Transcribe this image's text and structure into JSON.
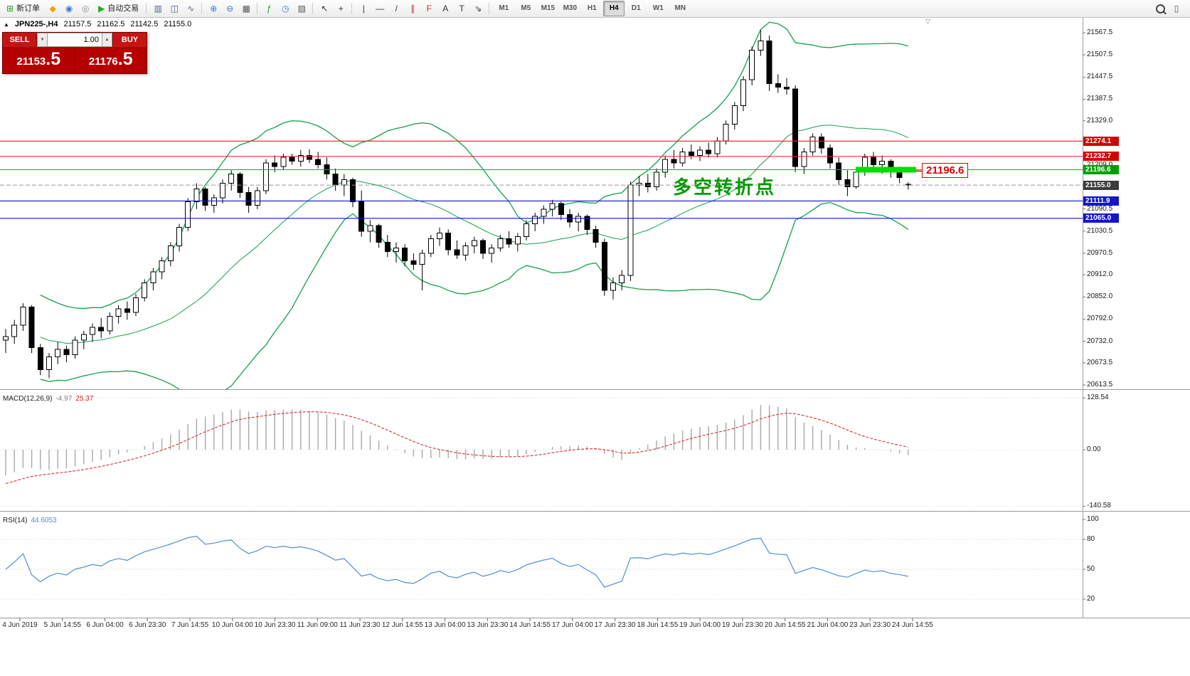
{
  "toolbar": {
    "items": [
      {
        "kind": "labeled",
        "name": "new-order-button",
        "glyph": "⊞",
        "glyph_color": "#1f9d1f",
        "label": "新订单"
      },
      {
        "kind": "glyph",
        "name": "mql-market-icon",
        "glyph": "◆",
        "color": "#eba312"
      },
      {
        "kind": "glyph",
        "name": "community-icon",
        "glyph": "◉",
        "color": "#3a79c9"
      },
      {
        "kind": "glyph",
        "name": "signals-icon",
        "glyph": "◎",
        "color": "#8a8a8a"
      },
      {
        "kind": "labeled",
        "name": "autotrading-button",
        "glyph": "▶",
        "glyph_color": "#1faa1f",
        "label": "自动交易"
      },
      {
        "kind": "sep"
      },
      {
        "kind": "glyph",
        "name": "bar-chart-icon",
        "glyph": "▥",
        "color": "#50618c"
      },
      {
        "kind": "glyph",
        "name": "candlestick-chart-icon",
        "glyph": "◫",
        "color": "#50618c"
      },
      {
        "kind": "glyph",
        "name": "line-chart-icon",
        "glyph": "∿",
        "color": "#50618c"
      },
      {
        "kind": "sep"
      },
      {
        "kind": "glyph",
        "name": "zoom-in-icon",
        "glyph": "⊕",
        "color": "#3a79c9"
      },
      {
        "kind": "glyph",
        "name": "zoom-out-icon",
        "glyph": "⊖",
        "color": "#3a79c9"
      },
      {
        "kind": "glyph",
        "name": "tile-windows-icon",
        "glyph": "▦",
        "color": "#555555"
      },
      {
        "kind": "sep"
      },
      {
        "kind": "glyph",
        "name": "indicators-icon",
        "glyph": "ƒ",
        "color": "#1f9d1f"
      },
      {
        "kind": "glyph",
        "name": "periods-icon",
        "glyph": "◷",
        "color": "#3a79c9"
      },
      {
        "kind": "glyph",
        "name": "templates-icon",
        "glyph": "▨",
        "color": "#555555"
      },
      {
        "kind": "sep"
      },
      {
        "kind": "glyph",
        "name": "cursor-icon",
        "glyph": "↖",
        "color": "#333333"
      },
      {
        "kind": "glyph",
        "name": "crosshair-icon",
        "glyph": "+",
        "color": "#333333"
      },
      {
        "kind": "sep"
      },
      {
        "kind": "glyph",
        "name": "vertical-line-icon",
        "glyph": "|",
        "color": "#333333"
      },
      {
        "kind": "glyph",
        "name": "horizontal-line-icon",
        "glyph": "—",
        "color": "#333333"
      },
      {
        "kind": "glyph",
        "name": "trendline-icon",
        "glyph": "/",
        "color": "#333333"
      },
      {
        "kind": "glyph",
        "name": "equidistant-channel-icon",
        "glyph": "∥",
        "color": "#c03030"
      },
      {
        "kind": "glyph",
        "name": "fibonacci-icon",
        "glyph": "F",
        "color": "#c03030"
      },
      {
        "kind": "glyph",
        "name": "text-icon",
        "glyph": "A",
        "color": "#333333"
      },
      {
        "kind": "glyph",
        "name": "text-label-icon",
        "glyph": "T",
        "color": "#333333"
      },
      {
        "kind": "glyph",
        "name": "arrows-icon",
        "glyph": "⇘",
        "color": "#333333"
      },
      {
        "kind": "sep"
      }
    ],
    "timeframes": {
      "options": [
        "M1",
        "M5",
        "M15",
        "M30",
        "H1",
        "H4",
        "D1",
        "W1",
        "MN"
      ],
      "active": "H4"
    },
    "right_items": [
      {
        "kind": "mag",
        "name": "search-icon"
      },
      {
        "kind": "glyph",
        "name": "new-window-icon",
        "glyph": "▯",
        "color": "#555555"
      }
    ]
  },
  "symbol_info": {
    "marker": "▲",
    "name": "JPN225-,H4",
    "open": "21157.5",
    "high": "21162.5",
    "low": "21142.5",
    "close": "21155.0"
  },
  "trade_panel": {
    "sell_label": "SELL",
    "buy_label": "BUY",
    "volume": "1.00",
    "stepper_down_icon": "▼",
    "stepper_up_icon": "▲",
    "sell_price_main": "21153",
    "sell_price_frac": ".5",
    "buy_price_main": "21176",
    "buy_price_frac": ".5"
  },
  "annotation": {
    "text": "多空转折点",
    "color": "#009900"
  },
  "price_tag": {
    "text": "21196.6",
    "color": "#e00000"
  },
  "misc": {
    "scroll_marker": "▽"
  },
  "chart_data": {
    "type": "candlestick",
    "symbol": "JPN225-",
    "timeframe": "H4",
    "ohlc_current": {
      "open": 21157.5,
      "high": 21162.5,
      "low": 21142.5,
      "close": 21155.0
    },
    "price_axis_range": {
      "min": 20602,
      "max": 21610
    },
    "y_axis_labels": [
      "21567.5",
      "21507.5",
      "21447.5",
      "21387.5",
      "21329.0",
      "21209.0",
      "21090.5",
      "21030.5",
      "20970.5",
      "20912.0",
      "20852.0",
      "20792.0",
      "20732.0",
      "20673.5",
      "20613.5"
    ],
    "x_axis_labels": [
      "4 Jun 2019",
      "5 Jun 14:55",
      "6 Jun 04:00",
      "6 Jun 23:30",
      "7 Jun 14:55",
      "10 Jun 04:00",
      "10 Jun 23:30",
      "11 Jun 09:00",
      "11 Jun 23:30",
      "12 Jun 14:55",
      "13 Jun 04:00",
      "13 Jun 23:30",
      "14 Jun 14:55",
      "17 Jun 04:00",
      "17 Jun 23:30",
      "18 Jun 14:55",
      "19 Jun 04:00",
      "19 Jun 23:30",
      "20 Jun 14:55",
      "21 Jun 04:00",
      "23 Jun 23:30",
      "24 Jun 14:55"
    ],
    "colors": {
      "bull": "#ffffff",
      "bear": "#000000",
      "wick": "#000000",
      "bollinger": "#12a14b"
    },
    "bollinger": {
      "period": 20,
      "deviation": 2
    },
    "hlines": [
      {
        "price": 21274.1,
        "label": "21274.1",
        "line_color": "#ff1a1a",
        "badge_color": "#d40000"
      },
      {
        "price": 21232.7,
        "label": "21232.7",
        "line_color": "#ff1a1a",
        "badge_color": "#d40000"
      },
      {
        "price": 21196.6,
        "label": "21196.6",
        "line_color": "#00bb00",
        "badge_color": "#00a000"
      },
      {
        "price": 21111.9,
        "label": "21111.9",
        "line_color": "#1515dd",
        "badge_color": "#1515cc"
      },
      {
        "price": 21065.0,
        "label": "21065.0",
        "line_color": "#1515dd",
        "badge_color": "#1515cc"
      }
    ],
    "current_price": {
      "price": 21155.0,
      "label": "21155.0",
      "badge_color": "#3c3c3c",
      "line_color": "#999999"
    },
    "highlight": {
      "price": 21196.6,
      "color": "#00df00"
    },
    "candles": [
      [
        20735,
        20765,
        20700,
        20745
      ],
      [
        20745,
        20790,
        20725,
        20775
      ],
      [
        20775,
        20835,
        20760,
        20825
      ],
      [
        20825,
        20830,
        20700,
        20715
      ],
      [
        20715,
        20725,
        20640,
        20655
      ],
      [
        20655,
        20700,
        20632,
        20690
      ],
      [
        20690,
        20730,
        20670,
        20710
      ],
      [
        20710,
        20720,
        20675,
        20695
      ],
      [
        20695,
        20745,
        20685,
        20735
      ],
      [
        20735,
        20760,
        20710,
        20750
      ],
      [
        20750,
        20780,
        20730,
        20770
      ],
      [
        20770,
        20795,
        20740,
        20760
      ],
      [
        20760,
        20810,
        20750,
        20800
      ],
      [
        20800,
        20830,
        20780,
        20820
      ],
      [
        20820,
        20840,
        20790,
        20810
      ],
      [
        20810,
        20860,
        20800,
        20850
      ],
      [
        20850,
        20900,
        20840,
        20890
      ],
      [
        20890,
        20930,
        20870,
        20920
      ],
      [
        20920,
        20960,
        20900,
        20950
      ],
      [
        20950,
        21000,
        20935,
        20990
      ],
      [
        20990,
        21050,
        20975,
        21040
      ],
      [
        21040,
        21120,
        21030,
        21110
      ],
      [
        21110,
        21160,
        21090,
        21145
      ],
      [
        21145,
        21150,
        21085,
        21100
      ],
      [
        21100,
        21130,
        21080,
        21120
      ],
      [
        21120,
        21170,
        21105,
        21160
      ],
      [
        21160,
        21195,
        21140,
        21185
      ],
      [
        21185,
        21190,
        21120,
        21135
      ],
      [
        21135,
        21150,
        21080,
        21100
      ],
      [
        21100,
        21150,
        21090,
        21140
      ],
      [
        21140,
        21225,
        21130,
        21215
      ],
      [
        21215,
        21235,
        21190,
        21205
      ],
      [
        21205,
        21240,
        21195,
        21230
      ],
      [
        21230,
        21240,
        21210,
        21220
      ],
      [
        21220,
        21250,
        21205,
        21235
      ],
      [
        21235,
        21252,
        21215,
        21225
      ],
      [
        21225,
        21245,
        21200,
        21210
      ],
      [
        21210,
        21230,
        21170,
        21185
      ],
      [
        21185,
        21200,
        21140,
        21155
      ],
      [
        21155,
        21185,
        21125,
        21170
      ],
      [
        21170,
        21175,
        21095,
        21110
      ],
      [
        21110,
        21140,
        21015,
        21030
      ],
      [
        21030,
        21060,
        21000,
        21045
      ],
      [
        21045,
        21050,
        20985,
        21000
      ],
      [
        21000,
        21020,
        20960,
        20975
      ],
      [
        20975,
        21000,
        20945,
        20985
      ],
      [
        20985,
        20995,
        20935,
        20950
      ],
      [
        20950,
        20970,
        20925,
        20940
      ],
      [
        20940,
        20980,
        20870,
        20970
      ],
      [
        20970,
        21020,
        20960,
        21010
      ],
      [
        21010,
        21040,
        20990,
        21025
      ],
      [
        21025,
        21035,
        20965,
        20980
      ],
      [
        20980,
        21005,
        20955,
        20965
      ],
      [
        20965,
        21000,
        20950,
        20990
      ],
      [
        20990,
        21015,
        20970,
        21005
      ],
      [
        21005,
        21010,
        20955,
        20970
      ],
      [
        20970,
        20995,
        20945,
        20985
      ],
      [
        20985,
        21020,
        20975,
        21010
      ],
      [
        21010,
        21030,
        20985,
        20995
      ],
      [
        20995,
        21025,
        20975,
        21015
      ],
      [
        21015,
        21060,
        21005,
        21050
      ],
      [
        21050,
        21080,
        21030,
        21070
      ],
      [
        21070,
        21100,
        21050,
        21090
      ],
      [
        21090,
        21115,
        21070,
        21105
      ],
      [
        21105,
        21110,
        21060,
        21075
      ],
      [
        21075,
        21090,
        21040,
        21055
      ],
      [
        21055,
        21080,
        21030,
        21070
      ],
      [
        21070,
        21075,
        21020,
        21035
      ],
      [
        21035,
        21045,
        20985,
        21000
      ],
      [
        21000,
        21010,
        20855,
        20870
      ],
      [
        20870,
        20905,
        20845,
        20890
      ],
      [
        20890,
        20925,
        20870,
        20910
      ],
      [
        20910,
        21165,
        20895,
        21155
      ],
      [
        21155,
        21180,
        21125,
        21160
      ],
      [
        21160,
        21185,
        21135,
        21150
      ],
      [
        21150,
        21200,
        21140,
        21190
      ],
      [
        21190,
        21235,
        21175,
        21225
      ],
      [
        21225,
        21250,
        21200,
        21215
      ],
      [
        21215,
        21255,
        21205,
        21245
      ],
      [
        21245,
        21265,
        21225,
        21235
      ],
      [
        21235,
        21260,
        21220,
        21250
      ],
      [
        21250,
        21270,
        21230,
        21240
      ],
      [
        21240,
        21285,
        21230,
        21275
      ],
      [
        21275,
        21330,
        21265,
        21320
      ],
      [
        21320,
        21380,
        21305,
        21370
      ],
      [
        21370,
        21450,
        21355,
        21440
      ],
      [
        21440,
        21530,
        21425,
        21520
      ],
      [
        21520,
        21575,
        21505,
        21545
      ],
      [
        21545,
        21560,
        21410,
        21430
      ],
      [
        21430,
        21455,
        21405,
        21420
      ],
      [
        21420,
        21445,
        21400,
        21415
      ],
      [
        21415,
        21425,
        21190,
        21205
      ],
      [
        21205,
        21255,
        21185,
        21245
      ],
      [
        21245,
        21295,
        21235,
        21285
      ],
      [
        21285,
        21295,
        21240,
        21255
      ],
      [
        21255,
        21265,
        21200,
        21215
      ],
      [
        21215,
        21230,
        21155,
        21170
      ],
      [
        21170,
        21195,
        21125,
        21150
      ],
      [
        21150,
        21200,
        21145,
        21190
      ],
      [
        21190,
        21240,
        21180,
        21230
      ],
      [
        21230,
        21245,
        21195,
        21210
      ],
      [
        21210,
        21235,
        21185,
        21220
      ],
      [
        21220,
        21225,
        21175,
        21190
      ],
      [
        21190,
        21205,
        21160,
        21175
      ],
      [
        21157.5,
        21162.5,
        21142.5,
        21155
      ]
    ],
    "indicators": [
      {
        "type": "macd",
        "label": "MACD(12,26,9)",
        "value_main": "-4.97",
        "value_signal": "25.37",
        "axis_labels": [
          {
            "text": "128.54",
            "value": 128.54
          },
          {
            "text": "0.00",
            "value": 0
          },
          {
            "text": "-140.58",
            "value": -140.58
          }
        ],
        "histogram_color": "#a8a8a8",
        "signal_color": "#d83232"
      },
      {
        "type": "rsi",
        "label": "RSI(14)",
        "value": "44.6053",
        "levels": [
          {
            "text": "100",
            "value": 100
          },
          {
            "text": "80",
            "value": 80
          },
          {
            "text": "50",
            "value": 50
          },
          {
            "text": "20",
            "value": 20
          }
        ],
        "line_color": "#4f8fd4"
      }
    ]
  }
}
